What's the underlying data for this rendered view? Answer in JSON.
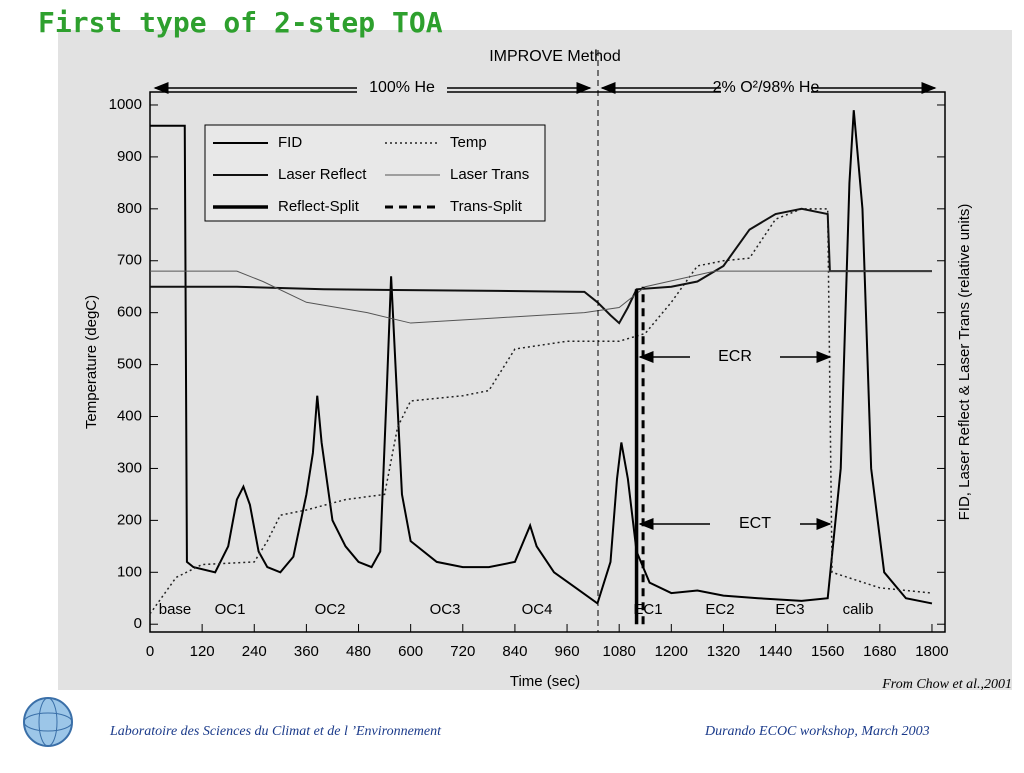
{
  "slide": {
    "title": "First type of 2-step TOA",
    "source": "From Chow et al.,2001",
    "footer_left": "Laboratoire des Sciences du Climat et de l ’Environnement",
    "footer_right": "Durando ECOC workshop, March 2003"
  },
  "chart_data": {
    "type": "line",
    "x_label": "Time (sec)",
    "y_label": "Temperature (degC)",
    "y2_label": "FID, Laser Reflect & Laser Trans (relative units)",
    "xlim": [
      0,
      1830
    ],
    "ylim": [
      -15,
      1025
    ],
    "xticks": [
      0,
      120,
      240,
      360,
      480,
      600,
      720,
      840,
      960,
      1080,
      1200,
      1320,
      1440,
      1560,
      1680,
      1800
    ],
    "yticks": [
      0,
      100,
      200,
      300,
      400,
      500,
      600,
      700,
      800,
      900,
      1000
    ],
    "annotations": [
      "IMPROVE Method",
      "100% He",
      "2% O²/98% He",
      "ECR",
      "ECT"
    ],
    "phases": [
      "base",
      "OC1",
      "OC2",
      "OC3",
      "OC4",
      "EC1",
      "EC2",
      "EC3",
      "calib"
    ],
    "series": [
      {
        "name": "FID",
        "color": "#000000",
        "style": "solid",
        "x": [
          0,
          80,
          85,
          100,
          150,
          180,
          200,
          215,
          230,
          250,
          270,
          300,
          330,
          360,
          375,
          385,
          395,
          420,
          450,
          480,
          510,
          530,
          545,
          555,
          565,
          580,
          600,
          660,
          720,
          780,
          840,
          860,
          875,
          890,
          930,
          980,
          1030,
          1060,
          1075,
          1085,
          1100,
          1120,
          1150,
          1200,
          1260,
          1320,
          1400,
          1500,
          1560,
          1590,
          1610,
          1620,
          1640,
          1660,
          1690,
          1740,
          1800
        ],
        "values": [
          960,
          960,
          120,
          110,
          100,
          150,
          240,
          265,
          230,
          140,
          110,
          100,
          130,
          250,
          330,
          440,
          350,
          200,
          150,
          120,
          110,
          140,
          450,
          670,
          500,
          250,
          160,
          120,
          110,
          110,
          120,
          160,
          190,
          150,
          100,
          70,
          40,
          120,
          280,
          350,
          280,
          140,
          80,
          60,
          65,
          55,
          50,
          45,
          50,
          300,
          850,
          990,
          800,
          300,
          100,
          50,
          40
        ]
      },
      {
        "name": "Temp",
        "color": "#222222",
        "style": "dotted",
        "x": [
          0,
          60,
          120,
          240,
          270,
          300,
          360,
          450,
          540,
          570,
          600,
          720,
          780,
          840,
          960,
          1080,
          1140,
          1200,
          1260,
          1320,
          1380,
          1440,
          1500,
          1560,
          1570,
          1680,
          1800
        ],
        "values": [
          20,
          90,
          115,
          120,
          160,
          210,
          220,
          240,
          250,
          380,
          430,
          440,
          450,
          530,
          545,
          545,
          560,
          620,
          690,
          700,
          705,
          780,
          800,
          800,
          100,
          70,
          60
        ]
      },
      {
        "name": "Laser Reflect",
        "color": "#111111",
        "style": "solid",
        "x": [
          0,
          200,
          400,
          800,
          1000,
          1030,
          1060,
          1080,
          1100,
          1120,
          1200,
          1260,
          1320,
          1380,
          1440,
          1500,
          1560,
          1565,
          1800
        ],
        "values": [
          650,
          650,
          645,
          642,
          640,
          620,
          595,
          580,
          610,
          645,
          650,
          660,
          690,
          760,
          790,
          800,
          790,
          680,
          680
        ]
      },
      {
        "name": "Laser Trans",
        "color": "#555555",
        "style": "thin",
        "x": [
          0,
          200,
          260,
          360,
          500,
          600,
          800,
          1000,
          1080,
          1140,
          1300,
          1560,
          1800
        ],
        "values": [
          680,
          680,
          660,
          620,
          600,
          580,
          590,
          600,
          610,
          650,
          680,
          680,
          680
        ]
      },
      {
        "name": "Reflect-Split",
        "color": "#000000",
        "style": "thick",
        "x": [
          1120,
          1120
        ],
        "values": [
          0,
          645
        ]
      },
      {
        "name": "Trans-Split",
        "color": "#000000",
        "style": "dashed",
        "x": [
          1135,
          1135
        ],
        "values": [
          0,
          650
        ]
      }
    ]
  }
}
